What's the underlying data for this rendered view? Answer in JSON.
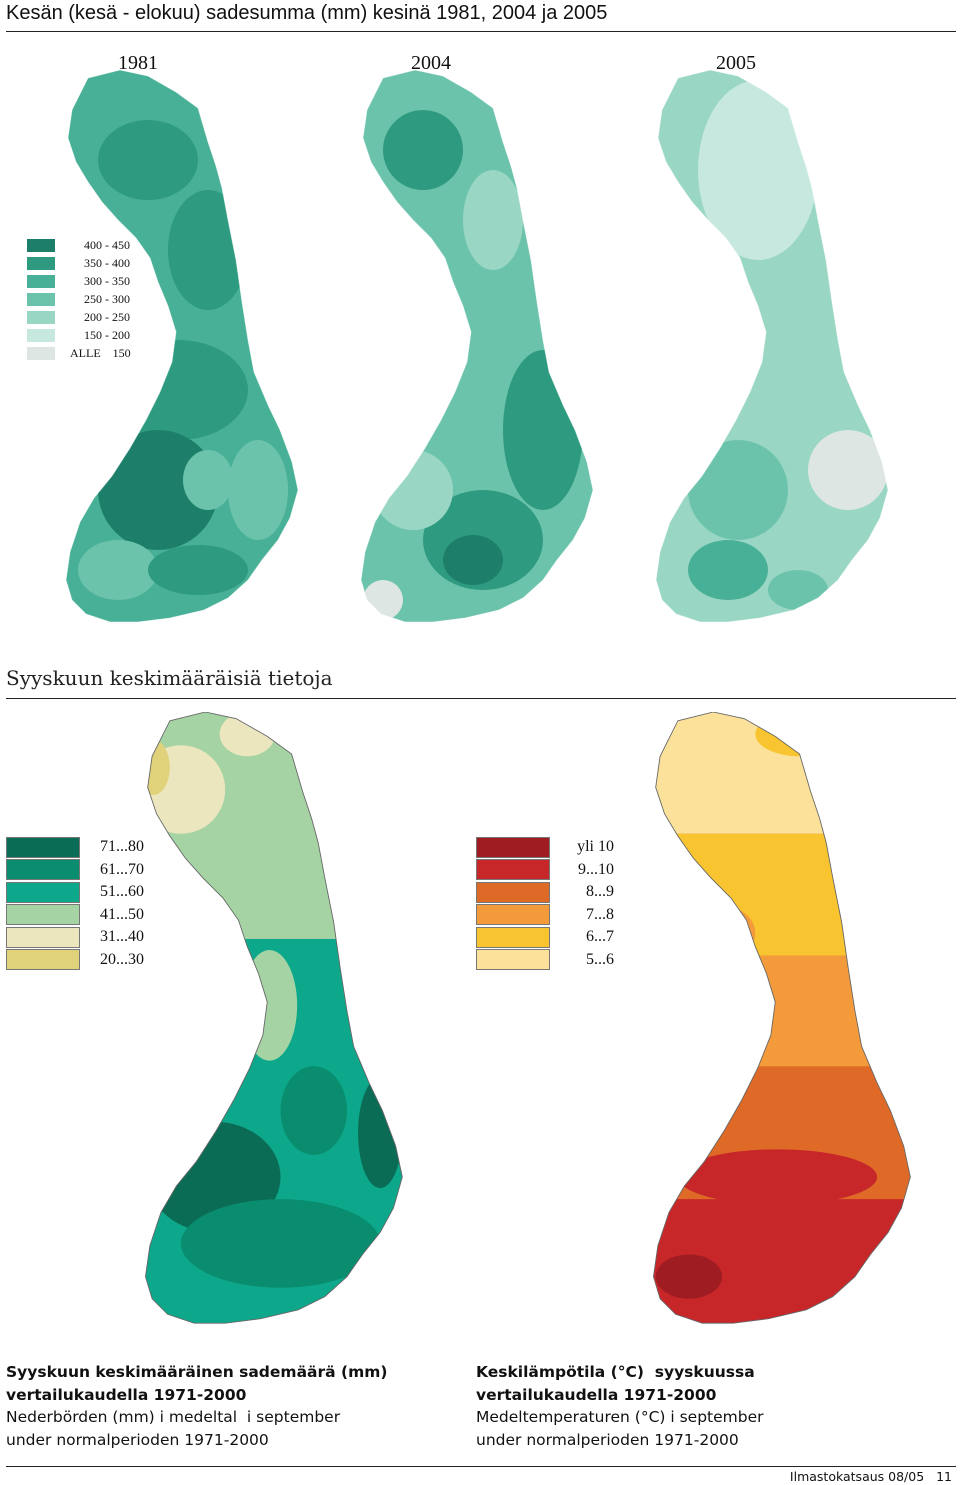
{
  "header": {
    "title": "Kesän (kesä - elokuu) sadesumma (mm) kesinä 1981, 2004 ja 2005"
  },
  "summer_maps": [
    {
      "year": "1981"
    },
    {
      "year": "2004"
    },
    {
      "year": "2005"
    }
  ],
  "summer_legend": [
    {
      "label": "400 - 450",
      "color": "#1d7f6a"
    },
    {
      "label": "350 - 400",
      "color": "#2e9a80"
    },
    {
      "label": "300 - 350",
      "color": "#48b096"
    },
    {
      "label": "250 - 300",
      "color": "#6cc3ab"
    },
    {
      "label": "200 - 250",
      "color": "#99d6c4"
    },
    {
      "label": "150 - 200",
      "color": "#c6e8df"
    },
    {
      "label": "ALLE    150",
      "color": "#dde6e3"
    }
  ],
  "section": {
    "title": "Syyskuun keskimääräisiä tietoja"
  },
  "precip_legend": [
    {
      "label": "71...80",
      "color": "#0b6c56"
    },
    {
      "label": "61...70",
      "color": "#0a8c6e"
    },
    {
      "label": "51...60",
      "color": "#0da88b"
    },
    {
      "label": "41...50",
      "color": "#a5d3a3"
    },
    {
      "label": "31...40",
      "color": "#ece6bf"
    },
    {
      "label": "20...30",
      "color": "#e0d27a"
    }
  ],
  "temp_legend": [
    {
      "label": "yli 10",
      "color": "#9f1d22"
    },
    {
      "label": "9...10",
      "color": "#c8272a"
    },
    {
      "label": "8...9",
      "color": "#df6a27"
    },
    {
      "label": "7...8",
      "color": "#f39a3b"
    },
    {
      "label": "6...7",
      "color": "#f8c530"
    },
    {
      "label": "5...6",
      "color": "#fbe19a"
    }
  ],
  "captions": {
    "precip": {
      "line1": "Syyskuun keskimääräinen sademäärä (mm)",
      "line2": "vertailukaudella 1971-2000",
      "line3": "Nederbörden (mm) i medeltal  i september",
      "line4": "under normalperioden 1971-2000"
    },
    "temp": {
      "line1": "Keskilämpötila (°C)  syyskuussa",
      "line2": "vertailukaudella 1971-2000",
      "line3": "Medeltemperaturen (°C) i september",
      "line4": "under normalperioden 1971-2000"
    }
  },
  "footer": {
    "text": "Ilmastokatsaus 08/05   11"
  }
}
